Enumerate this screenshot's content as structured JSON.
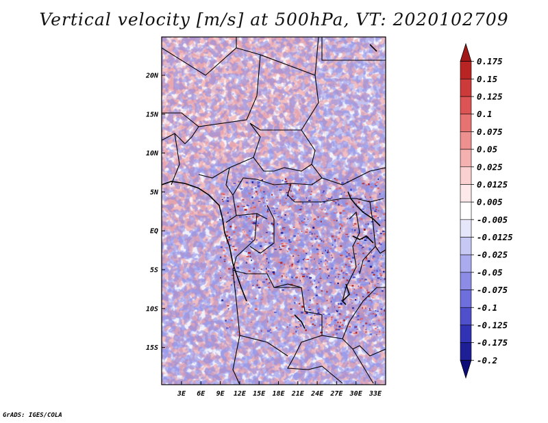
{
  "title": "Vertical velocity [m/s] at 500hPa, VT: 2020102709",
  "credit": "GrADS: IGES/COLA",
  "map": {
    "variable": "Vertical velocity",
    "units": "m/s",
    "level": "500hPa",
    "valid_time": "2020102709",
    "lat_labels": [
      "20N",
      "15N",
      "10N",
      "5N",
      "EQ",
      "5S",
      "10S",
      "15S"
    ],
    "lon_labels": [
      "3E",
      "6E",
      "9E",
      "12E",
      "15E",
      "18E",
      "21E",
      "24E",
      "27E",
      "30E",
      "33E"
    ]
  },
  "colorbar": {
    "labels": [
      "0.175",
      "0.15",
      "0.125",
      "0.1",
      "0.075",
      "0.05",
      "0.025",
      "0.0125",
      "0.005",
      "-0.005",
      "-0.0125",
      "-0.025",
      "-0.05",
      "-0.075",
      "-0.1",
      "-0.125",
      "-0.175",
      "-0.2"
    ],
    "colors": [
      "#a01818",
      "#b82424",
      "#cc3a3a",
      "#dc5454",
      "#e67272",
      "#ee9090",
      "#f5b0b0",
      "#fad0d0",
      "#fde9e9",
      "#ffffff",
      "#e6e6fa",
      "#c8c8f4",
      "#aaaaee",
      "#8c8ce6",
      "#6e6edc",
      "#5050cc",
      "#3232b4",
      "#1e1e96",
      "#0c0c78"
    ]
  }
}
